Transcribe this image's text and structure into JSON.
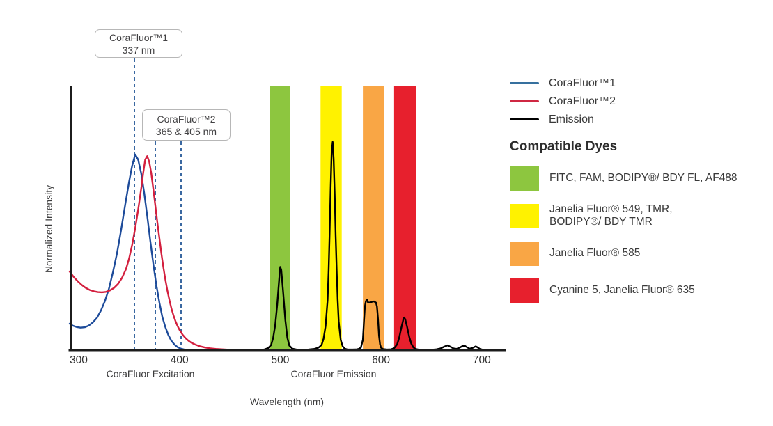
{
  "chart_data": {
    "type": "line",
    "title": "",
    "xlabel": "Wavelength (nm)",
    "ylabel": "Normalized Intensity",
    "x_ticks": [
      300,
      400,
      500,
      600,
      700
    ],
    "x_range_nm": [
      291,
      723
    ],
    "ylim": [
      0,
      1.27
    ],
    "grid": false,
    "section_labels": {
      "excitation": "CoraFluor Excitation",
      "emission": "CoraFluor Emission"
    },
    "callouts": [
      {
        "title": "CoraFluor™1",
        "value": "337 nm",
        "marker_lines_nm": [
          355.3
        ]
      },
      {
        "title": "CoraFluor™2",
        "value": "365 & 405 nm",
        "marker_lines_nm": [
          376,
          401.6
        ]
      }
    ],
    "marker_line_color": "#3a68a1",
    "series": [
      {
        "name": "CoraFluor™1 excitation",
        "color": "#1d4b9a",
        "points": [
          [
            291,
            0.127
          ],
          [
            294,
            0.118
          ],
          [
            298,
            0.111
          ],
          [
            302,
            0.108
          ],
          [
            306,
            0.11
          ],
          [
            310,
            0.118
          ],
          [
            314,
            0.133
          ],
          [
            318,
            0.155
          ],
          [
            322,
            0.19
          ],
          [
            326,
            0.235
          ],
          [
            330,
            0.295
          ],
          [
            334,
            0.375
          ],
          [
            338,
            0.465
          ],
          [
            342,
            0.575
          ],
          [
            346,
            0.695
          ],
          [
            350,
            0.81
          ],
          [
            353,
            0.885
          ],
          [
            356,
            0.94
          ],
          [
            359,
            0.915
          ],
          [
            362,
            0.85
          ],
          [
            365,
            0.755
          ],
          [
            368,
            0.645
          ],
          [
            371,
            0.525
          ],
          [
            374,
            0.415
          ],
          [
            377,
            0.315
          ],
          [
            380,
            0.23
          ],
          [
            383,
            0.16
          ],
          [
            386,
            0.11
          ],
          [
            389,
            0.072
          ],
          [
            392,
            0.045
          ],
          [
            395,
            0.027
          ],
          [
            398,
            0.015
          ],
          [
            401,
            0.008
          ],
          [
            405,
            0.003
          ],
          [
            410,
            0.001
          ],
          [
            416,
            0
          ]
        ]
      },
      {
        "name": "CoraFluor™2 excitation",
        "color": "#d31f3e",
        "points": [
          [
            291,
            0.378
          ],
          [
            295,
            0.352
          ],
          [
            299,
            0.331
          ],
          [
            303,
            0.313
          ],
          [
            307,
            0.299
          ],
          [
            311,
            0.289
          ],
          [
            315,
            0.283
          ],
          [
            319,
            0.279
          ],
          [
            323,
            0.278
          ],
          [
            327,
            0.28
          ],
          [
            331,
            0.287
          ],
          [
            335,
            0.299
          ],
          [
            339,
            0.318
          ],
          [
            343,
            0.347
          ],
          [
            347,
            0.39
          ],
          [
            350,
            0.44
          ],
          [
            353,
            0.505
          ],
          [
            356,
            0.585
          ],
          [
            359,
            0.675
          ],
          [
            362,
            0.775
          ],
          [
            364,
            0.85
          ],
          [
            366,
            0.915
          ],
          [
            368,
            0.932
          ],
          [
            370,
            0.905
          ],
          [
            372,
            0.85
          ],
          [
            374,
            0.775
          ],
          [
            376,
            0.695
          ],
          [
            378,
            0.615
          ],
          [
            380,
            0.54
          ],
          [
            382,
            0.465
          ],
          [
            384,
            0.398
          ],
          [
            386,
            0.338
          ],
          [
            388,
            0.285
          ],
          [
            390,
            0.24
          ],
          [
            392,
            0.201
          ],
          [
            394,
            0.168
          ],
          [
            396,
            0.14
          ],
          [
            398,
            0.117
          ],
          [
            400,
            0.098
          ],
          [
            403,
            0.075
          ],
          [
            406,
            0.058
          ],
          [
            409,
            0.045
          ],
          [
            412,
            0.035
          ],
          [
            416,
            0.026
          ],
          [
            420,
            0.019
          ],
          [
            425,
            0.013
          ],
          [
            430,
            0.009
          ],
          [
            436,
            0.006
          ],
          [
            443,
            0.004
          ],
          [
            450,
            0.002
          ],
          [
            458,
            0.001
          ],
          [
            465,
            0
          ]
        ]
      },
      {
        "name": "Emission",
        "color": "#000000",
        "points": [
          [
            440,
            0
          ],
          [
            478,
            0
          ],
          [
            484,
            0.003
          ],
          [
            488,
            0.01
          ],
          [
            491,
            0.025
          ],
          [
            493,
            0.06
          ],
          [
            495,
            0.12
          ],
          [
            497,
            0.22
          ],
          [
            499,
            0.345
          ],
          [
            500,
            0.4
          ],
          [
            501,
            0.385
          ],
          [
            503,
            0.27
          ],
          [
            505,
            0.145
          ],
          [
            507,
            0.06
          ],
          [
            509,
            0.022
          ],
          [
            512,
            0.007
          ],
          [
            516,
            0.003
          ],
          [
            522,
            0.002
          ],
          [
            528,
            0.003
          ],
          [
            534,
            0.006
          ],
          [
            538,
            0.012
          ],
          [
            541,
            0.025
          ],
          [
            543,
            0.055
          ],
          [
            545,
            0.115
          ],
          [
            547,
            0.24
          ],
          [
            548,
            0.38
          ],
          [
            549,
            0.56
          ],
          [
            550,
            0.78
          ],
          [
            551,
            0.95
          ],
          [
            552,
            1.0
          ],
          [
            553,
            0.92
          ],
          [
            554,
            0.75
          ],
          [
            555,
            0.55
          ],
          [
            556,
            0.38
          ],
          [
            557,
            0.24
          ],
          [
            558,
            0.14
          ],
          [
            560,
            0.05
          ],
          [
            562,
            0.018
          ],
          [
            564,
            0.007
          ],
          [
            567,
            0.003
          ],
          [
            572,
            0.003
          ],
          [
            576,
            0.004
          ],
          [
            578,
            0.006
          ],
          [
            580,
            0.012
          ],
          [
            582,
            0.05
          ],
          [
            583,
            0.13
          ],
          [
            584,
            0.21
          ],
          [
            585,
            0.235
          ],
          [
            586,
            0.242
          ],
          [
            587,
            0.23
          ],
          [
            589,
            0.228
          ],
          [
            591,
            0.232
          ],
          [
            593,
            0.234
          ],
          [
            595,
            0.228
          ],
          [
            596,
            0.21
          ],
          [
            597,
            0.15
          ],
          [
            598,
            0.07
          ],
          [
            599,
            0.028
          ],
          [
            600,
            0.012
          ],
          [
            602,
            0.005
          ],
          [
            606,
            0.003
          ],
          [
            610,
            0.004
          ],
          [
            613,
            0.009
          ],
          [
            616,
            0.028
          ],
          [
            618,
            0.06
          ],
          [
            620,
            0.105
          ],
          [
            622,
            0.145
          ],
          [
            623,
            0.157
          ],
          [
            624,
            0.148
          ],
          [
            626,
            0.11
          ],
          [
            628,
            0.065
          ],
          [
            630,
            0.032
          ],
          [
            632,
            0.014
          ],
          [
            634,
            0.006
          ],
          [
            638,
            0.002
          ],
          [
            644,
            0.001
          ],
          [
            650,
            0.002
          ],
          [
            655,
            0.004
          ],
          [
            659,
            0.008
          ],
          [
            662,
            0.015
          ],
          [
            666,
            0.023
          ],
          [
            669,
            0.016
          ],
          [
            672,
            0.008
          ],
          [
            675,
            0.006
          ],
          [
            678,
            0.012
          ],
          [
            681,
            0.02
          ],
          [
            683,
            0.021
          ],
          [
            685,
            0.015
          ],
          [
            688,
            0.007
          ],
          [
            691,
            0.011
          ],
          [
            694,
            0.018
          ],
          [
            696,
            0.013
          ],
          [
            698,
            0.006
          ],
          [
            701,
            0.002
          ],
          [
            706,
            0.001
          ],
          [
            712,
            0
          ]
        ]
      }
    ],
    "filter_bands": [
      {
        "range_nm": [
          490,
          510
        ],
        "color": "#8dc63f",
        "dyes": "FITC, FAM, BODIPY®/ BDY FL, AF488"
      },
      {
        "range_nm": [
          540,
          561
        ],
        "color": "#fff200",
        "dyes": "Janelia Fluor® 549, TMR, BODIPY®/ BDY TMR"
      },
      {
        "range_nm": [
          582,
          603
        ],
        "color": "#f9a645",
        "dyes": "Janelia Fluor® 585"
      },
      {
        "range_nm": [
          613,
          635
        ],
        "color": "#e7202d",
        "dyes": "Cyanine 5, Janelia Fluor® 635"
      }
    ],
    "excitation_maxima": [
      {
        "series": "CoraFluor™1",
        "stated": "337 nm"
      },
      {
        "series": "CoraFluor™2",
        "stated": "365 & 405 nm"
      }
    ]
  },
  "legend": {
    "items": [
      {
        "label": "CoraFluor™1",
        "color": "#36709e"
      },
      {
        "label": "CoraFluor™2",
        "color": "#cf2742"
      },
      {
        "label": "Emission",
        "color": "#000000"
      }
    ]
  },
  "compatible_dyes": {
    "heading": "Compatible Dyes",
    "items": [
      {
        "color": "#8dc63f",
        "label": "FITC, FAM, BODIPY®/ BDY FL, AF488"
      },
      {
        "color": "#fff200",
        "label": "Janelia Fluor® 549, TMR,\nBODIPY®/ BDY TMR"
      },
      {
        "color": "#f9a645",
        "label": "Janelia Fluor® 585"
      },
      {
        "color": "#e7202d",
        "label": "Cyanine 5, Janelia Fluor® 635"
      }
    ]
  }
}
